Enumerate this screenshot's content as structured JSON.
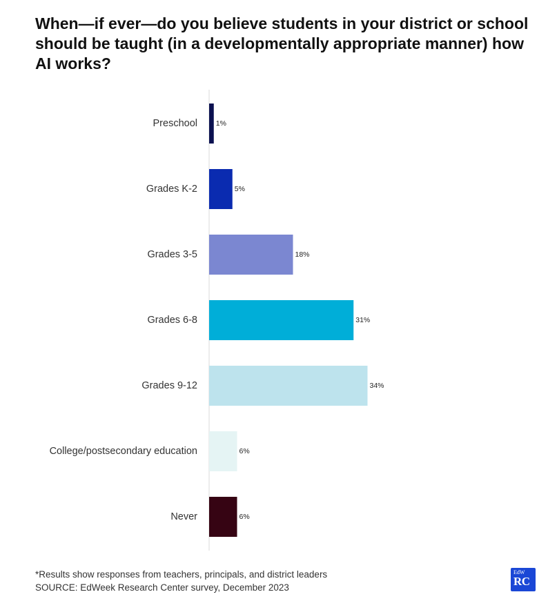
{
  "title": "When—if ever—do you believe students in your district or school should be taught (in a developmentally appropriate manner) how AI works?",
  "chart_data": {
    "type": "bar",
    "orientation": "horizontal",
    "categories": [
      "Preschool",
      "Grades K-2",
      "Grades 3-5",
      "Grades 6-8",
      "Grades 9-12",
      "College/postsecondary education",
      "Never"
    ],
    "values": [
      1,
      5,
      18,
      31,
      34,
      6,
      6
    ],
    "value_labels": [
      "1%",
      "5%",
      "18%",
      "31%",
      "34%",
      "6%",
      "6%"
    ],
    "colors": [
      "#0b1150",
      "#0a2bb0",
      "#7b87d1",
      "#00aed8",
      "#bde3ed",
      "#e5f4f4",
      "#360413"
    ],
    "xlim": [
      0,
      35
    ],
    "grid": false
  },
  "footer": {
    "note": "*Results show responses from teachers, principals, and district leaders",
    "source": "SOURCE: EdWeek Research Center survey, December 2023"
  },
  "logo": {
    "small_text": "EdW",
    "big_text": "RC",
    "color": "#1a47d6"
  }
}
